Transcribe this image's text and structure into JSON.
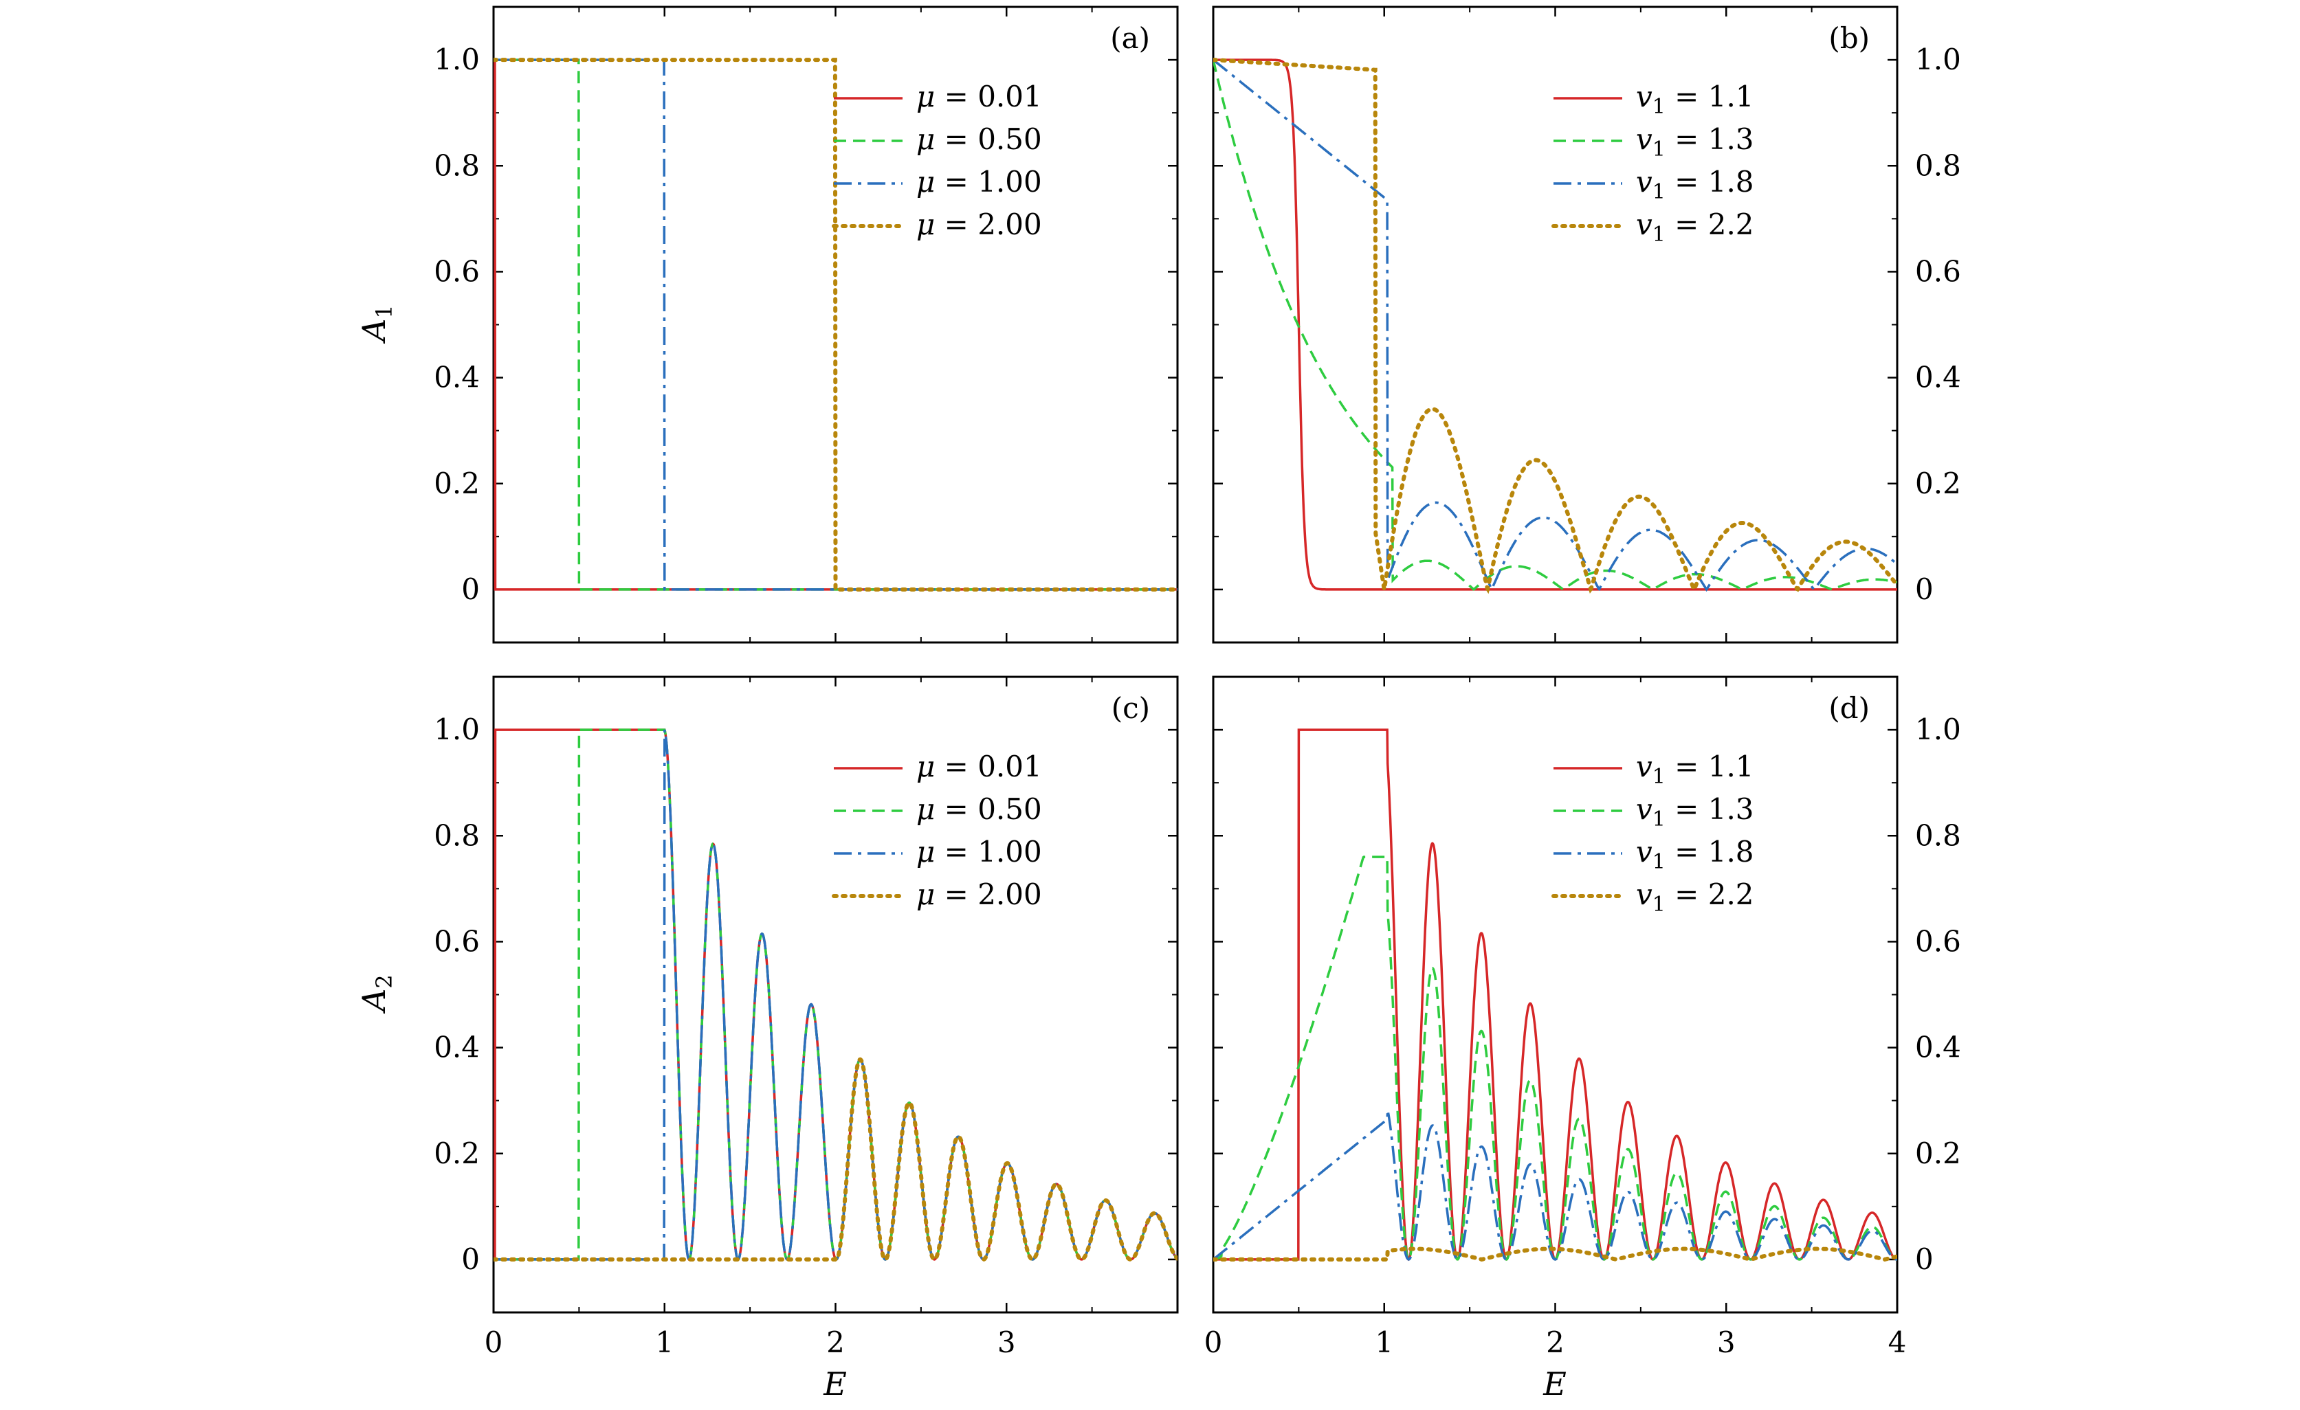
{
  "figure": {
    "xlabel": "E",
    "ylabel_top_main": "A",
    "ylabel_top_sub": "1",
    "ylabel_bottom_main": "A",
    "ylabel_bottom_sub": "2"
  },
  "colors": {
    "red": "#d62728",
    "green": "#2ecc40",
    "blue": "#2a6fbd",
    "gold": "#b8860b"
  },
  "chart_data": [
    {
      "panel": "a",
      "label": "(a)",
      "type": "line",
      "xlim": [
        0,
        4
      ],
      "ylim": [
        -0.1,
        1.1
      ],
      "yticks": [
        "0",
        "0.2",
        "0.4",
        "0.6",
        "0.8",
        "1.0"
      ],
      "xticks": [],
      "legend_var": "μ",
      "legend_position": "top-right",
      "series": [
        {
          "name": "μ = 0.01",
          "var": "μ",
          "value": "= 0.01",
          "style": "solid",
          "color": "red",
          "threshold": 0.01
        },
        {
          "name": "μ = 0.50",
          "var": "μ",
          "value": "= 0.50",
          "style": "dashed",
          "color": "green",
          "threshold": 0.5
        },
        {
          "name": "μ = 1.00",
          "var": "μ",
          "value": "= 1.00",
          "style": "dashdot",
          "color": "blue",
          "threshold": 1.0
        },
        {
          "name": "μ = 2.00",
          "var": "μ",
          "value": "= 2.00",
          "style": "dotted",
          "color": "gold",
          "threshold": 2.0
        }
      ]
    },
    {
      "panel": "b",
      "label": "(b)",
      "type": "line",
      "xlim": [
        0,
        4
      ],
      "ylim": [
        -0.1,
        1.1
      ],
      "yticks": [
        "0",
        "0.2",
        "0.4",
        "0.6",
        "0.8",
        "1.0"
      ],
      "xticks": [],
      "legend_var": "v",
      "legend_position": "top-right",
      "series": [
        {
          "name": "v1 = 1.1",
          "var": "v",
          "sub": "1",
          "value": "= 1.1",
          "style": "solid",
          "color": "red",
          "v1": 1.1
        },
        {
          "name": "v1 = 1.3",
          "var": "v",
          "sub": "1",
          "value": "= 1.3",
          "style": "dashed",
          "color": "green",
          "v1": 1.3
        },
        {
          "name": "v1 = 1.8",
          "var": "v",
          "sub": "1",
          "value": "= 1.8",
          "style": "dashdot",
          "color": "blue",
          "v1": 1.8
        },
        {
          "name": "v1 = 2.2",
          "var": "v",
          "sub": "1",
          "value": "= 2.2",
          "style": "dotted",
          "color": "gold",
          "v1": 2.2
        }
      ]
    },
    {
      "panel": "c",
      "label": "(c)",
      "type": "line",
      "xlim": [
        0,
        4
      ],
      "ylim": [
        -0.1,
        1.1
      ],
      "yticks": [
        "0",
        "0.2",
        "0.4",
        "0.6",
        "0.8",
        "1.0"
      ],
      "xticks": [
        "0",
        "1",
        "2",
        "3"
      ],
      "legend_position": "top-right",
      "series": [
        {
          "name": "μ = 0.01",
          "var": "μ",
          "value": "= 0.01",
          "style": "solid",
          "color": "red",
          "threshold": 0.01
        },
        {
          "name": "μ = 0.50",
          "var": "μ",
          "value": "= 0.50",
          "style": "dashed",
          "color": "green",
          "threshold": 0.5
        },
        {
          "name": "μ = 1.00",
          "var": "μ",
          "value": "= 1.00",
          "style": "dashdot",
          "color": "blue",
          "threshold": 1.0
        },
        {
          "name": "μ = 2.00",
          "var": "μ",
          "value": "= 2.00",
          "style": "dotted",
          "color": "gold",
          "threshold": 2.0
        }
      ]
    },
    {
      "panel": "d",
      "label": "(d)",
      "type": "line",
      "xlim": [
        0,
        4
      ],
      "ylim": [
        -0.1,
        1.1
      ],
      "yticks": [
        "0",
        "0.2",
        "0.4",
        "0.6",
        "0.8",
        "1.0"
      ],
      "xticks": [
        "0",
        "1",
        "2",
        "3",
        "4"
      ],
      "legend_position": "top-right",
      "series": [
        {
          "name": "v1 = 1.1",
          "var": "v",
          "sub": "1",
          "value": "= 1.1",
          "style": "solid",
          "color": "red",
          "v1": 1.1
        },
        {
          "name": "v1 = 1.3",
          "var": "v",
          "sub": "1",
          "value": "= 1.3",
          "style": "dashed",
          "color": "green",
          "v1": 1.3
        },
        {
          "name": "v1 = 1.8",
          "var": "v",
          "sub": "1",
          "value": "= 1.8",
          "style": "dashdot",
          "color": "blue",
          "v1": 1.8
        },
        {
          "name": "v1 = 2.2",
          "var": "v",
          "sub": "1",
          "value": "= 2.2",
          "style": "dotted",
          "color": "gold",
          "v1": 2.2
        }
      ]
    }
  ]
}
